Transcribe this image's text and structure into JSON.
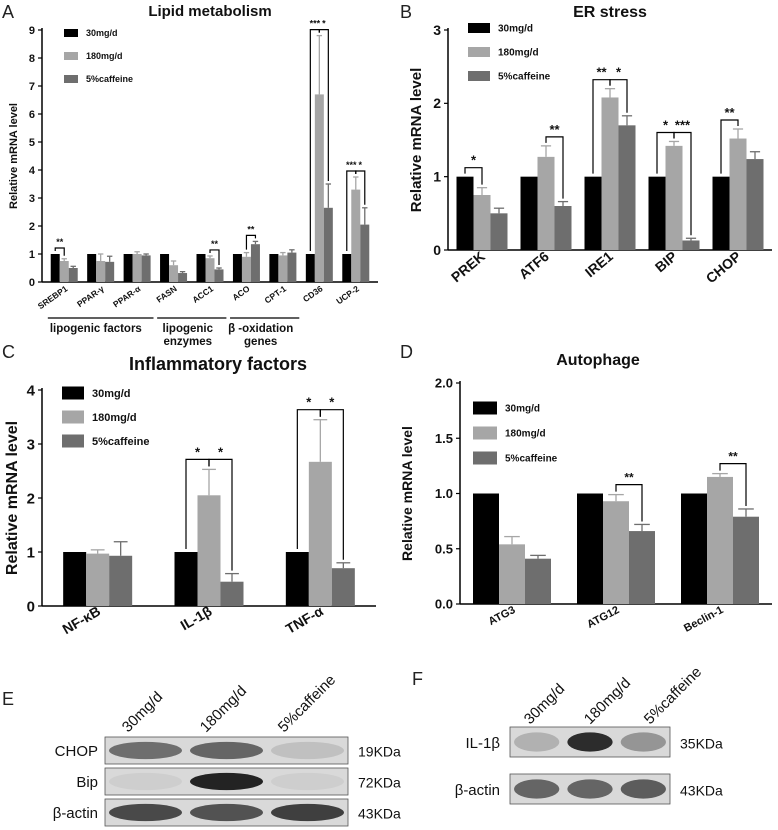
{
  "colors": {
    "s0": "#000000",
    "s1": "#a6a6a6",
    "s2": "#6e6e6e"
  },
  "chart_data": [
    {
      "panel": "A",
      "type": "bar",
      "title": "Lipid metabolism",
      "ylabel": "Relative mRNA level",
      "xlabel": "",
      "ylim": [
        0,
        9
      ],
      "yticks": [
        "0",
        "1",
        "2",
        "3",
        "4",
        "5",
        "6",
        "7",
        "8",
        "9"
      ],
      "categories": [
        "SREBP1",
        "PPAR-γ",
        "PPAR-α",
        "FASN",
        "ACC1",
        "ACO",
        "CPT-1",
        "CD36",
        "UCP-2"
      ],
      "series": [
        {
          "name": "30mg/d",
          "values": [
            1,
            1,
            1,
            1,
            1,
            1,
            1,
            1,
            1
          ],
          "errors": [
            0,
            0,
            0,
            0,
            0,
            0,
            0,
            0,
            0
          ]
        },
        {
          "name": "180mg/d",
          "values": [
            0.75,
            0.75,
            1.0,
            0.6,
            0.85,
            0.9,
            0.95,
            6.7,
            3.3
          ],
          "errors": [
            0.08,
            0.25,
            0.08,
            0.15,
            0.08,
            0.15,
            0.1,
            2.1,
            0.45
          ]
        },
        {
          "name": "5%caffeine",
          "values": [
            0.5,
            0.72,
            0.95,
            0.32,
            0.45,
            1.35,
            1.05,
            2.65,
            2.05
          ],
          "errors": [
            0.06,
            0.2,
            0.05,
            0.05,
            0.05,
            0.1,
            0.1,
            0.85,
            0.6
          ]
        }
      ],
      "significance": [
        {
          "cat": 0,
          "pair": [
            0,
            1
          ],
          "label": "**"
        },
        {
          "cat": 4,
          "pair": [
            1,
            2
          ],
          "label": "**"
        },
        {
          "cat": 5,
          "pair": [
            1,
            2
          ],
          "label": "**"
        },
        {
          "cat": 7,
          "pair": [
            0,
            1
          ],
          "label": "***"
        },
        {
          "cat": 7,
          "pair": [
            1,
            2
          ],
          "label": "*"
        },
        {
          "cat": 8,
          "pair": [
            0,
            1
          ],
          "label": "***"
        },
        {
          "cat": 8,
          "pair": [
            1,
            2
          ],
          "label": "*"
        }
      ],
      "groups": [
        {
          "label": "lipogenic factors",
          "from": 0,
          "to": 2
        },
        {
          "label": "lipogenic enzymes",
          "from": 3,
          "to": 4
        },
        {
          "label": "β -oxidation genes",
          "from": 5,
          "to": 6
        }
      ],
      "legend_position": "top-left"
    },
    {
      "panel": "B",
      "type": "bar",
      "title": "ER stress",
      "ylabel": "Relative mRNA level",
      "xlabel": "",
      "ylim": [
        0,
        3
      ],
      "yticks": [
        "0",
        "1",
        "2",
        "3"
      ],
      "categories": [
        "PREK",
        "ATF6",
        "IRE1",
        "BIP",
        "CHOP"
      ],
      "series": [
        {
          "name": "30mg/d",
          "values": [
            1,
            1,
            1,
            1,
            1
          ],
          "errors": [
            0,
            0,
            0,
            0,
            0
          ]
        },
        {
          "name": "180mg/d",
          "values": [
            0.75,
            1.27,
            2.08,
            1.42,
            1.52
          ],
          "errors": [
            0.1,
            0.15,
            0.12,
            0.06,
            0.13
          ]
        },
        {
          "name": "5%caffeine",
          "values": [
            0.5,
            0.6,
            1.7,
            0.13,
            1.24
          ],
          "errors": [
            0.07,
            0.06,
            0.13,
            0.03,
            0.1
          ]
        }
      ],
      "significance": [
        {
          "cat": 0,
          "pair": [
            0,
            1
          ],
          "label": "*"
        },
        {
          "cat": 1,
          "pair": [
            1,
            2
          ],
          "label": "**"
        },
        {
          "cat": 2,
          "pair": [
            0,
            1
          ],
          "label": "**"
        },
        {
          "cat": 2,
          "pair": [
            1,
            2
          ],
          "label": "*"
        },
        {
          "cat": 3,
          "pair": [
            0,
            1
          ],
          "label": "*"
        },
        {
          "cat": 3,
          "pair": [
            1,
            2
          ],
          "label": "***"
        },
        {
          "cat": 4,
          "pair": [
            0,
            1
          ],
          "label": "**"
        }
      ],
      "legend_position": "top-left"
    },
    {
      "panel": "C",
      "type": "bar",
      "title": "Inflammatory factors",
      "ylabel": "Relative mRNA level",
      "xlabel": "",
      "ylim": [
        0,
        4
      ],
      "yticks": [
        "0",
        "1",
        "2",
        "3",
        "4"
      ],
      "categories": [
        "NF-κB",
        "IL-1β",
        "TNF-α"
      ],
      "series": [
        {
          "name": "30mg/d",
          "values": [
            1,
            1,
            1
          ],
          "errors": [
            0,
            0,
            0
          ]
        },
        {
          "name": "180mg/d",
          "values": [
            0.97,
            2.05,
            2.67
          ],
          "errors": [
            0.07,
            0.48,
            0.78
          ]
        },
        {
          "name": "5%caffeine",
          "values": [
            0.93,
            0.45,
            0.7
          ],
          "errors": [
            0.26,
            0.15,
            0.1
          ]
        }
      ],
      "significance": [
        {
          "cat": 1,
          "pair": [
            0,
            1
          ],
          "label": "*"
        },
        {
          "cat": 1,
          "pair": [
            1,
            2
          ],
          "label": "*"
        },
        {
          "cat": 2,
          "pair": [
            0,
            1
          ],
          "label": "*"
        },
        {
          "cat": 2,
          "pair": [
            1,
            2
          ],
          "label": "*"
        }
      ],
      "legend_position": "top-left"
    },
    {
      "panel": "D",
      "type": "bar",
      "title": "Autophage",
      "ylabel": "Relative mRNA level",
      "xlabel": "",
      "ylim": [
        0,
        2
      ],
      "yticks": [
        "0.0",
        "0.5",
        "1.0",
        "1.5",
        "2.0"
      ],
      "categories": [
        "ATG3",
        "ATG12",
        "Beclin-1"
      ],
      "series": [
        {
          "name": "30mg/d",
          "values": [
            1,
            1,
            1
          ],
          "errors": [
            0,
            0,
            0
          ]
        },
        {
          "name": "180mg/d",
          "values": [
            0.54,
            0.93,
            1.15
          ],
          "errors": [
            0.07,
            0.06,
            0.03
          ]
        },
        {
          "name": "5%caffeine",
          "values": [
            0.41,
            0.66,
            0.79
          ],
          "errors": [
            0.03,
            0.06,
            0.07
          ]
        }
      ],
      "significance": [
        {
          "cat": 1,
          "pair": [
            1,
            2
          ],
          "label": "**"
        },
        {
          "cat": 2,
          "pair": [
            1,
            2
          ],
          "label": "**"
        }
      ],
      "legend_position": "top-left"
    }
  ],
  "blots": [
    {
      "panel": "E",
      "lanes": [
        "30mg/d",
        "180mg/d",
        "5%caffeine"
      ],
      "rows": [
        {
          "label": "CHOP",
          "kda": "19KDa",
          "intensity": [
            0.55,
            0.6,
            0.12
          ]
        },
        {
          "label": "Bip",
          "kda": "72KDa",
          "intensity": [
            0.05,
            0.95,
            0.05
          ]
        },
        {
          "label": "β-actin",
          "kda": "43KDa",
          "intensity": [
            0.75,
            0.7,
            0.8
          ]
        }
      ]
    },
    {
      "panel": "F",
      "lanes": [
        "30mg/d",
        "180mg/d",
        "5%caffeine"
      ],
      "rows": [
        {
          "label": "IL-1β",
          "kda": "35KDa",
          "intensity": [
            0.2,
            0.9,
            0.35
          ]
        },
        {
          "label": "β-actin",
          "kda": "43KDa",
          "intensity": [
            0.6,
            0.6,
            0.65
          ]
        }
      ]
    }
  ]
}
